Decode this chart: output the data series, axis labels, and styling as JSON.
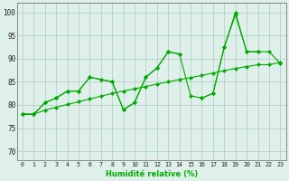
{
  "x": [
    0,
    1,
    2,
    3,
    4,
    5,
    6,
    7,
    8,
    9,
    10,
    11,
    12,
    13,
    14,
    15,
    16,
    17,
    18,
    19,
    20,
    21,
    22,
    23
  ],
  "line_main": [
    78,
    78,
    80.5,
    81.5,
    83,
    83,
    86,
    85.5,
    85,
    79,
    80.5,
    86,
    88,
    91.5,
    91,
    82,
    81.5,
    82.5,
    92.5,
    99.5,
    91.5,
    91.5,
    91.5,
    89
  ],
  "line_alt": [
    78,
    78,
    80.5,
    81.5,
    83,
    83,
    86,
    85.5,
    85,
    79,
    80.5,
    86,
    88,
    91.5,
    91,
    null,
    81.5,
    82.5,
    92.5,
    100,
    91.5,
    91.5,
    null,
    null
  ],
  "line_trend": [
    78,
    78,
    78.9,
    79.5,
    80.1,
    80.7,
    81.3,
    81.9,
    82.5,
    83.0,
    83.5,
    84.0,
    84.5,
    85.0,
    85.5,
    85.9,
    86.4,
    86.9,
    87.4,
    87.9,
    88.3,
    88.7,
    88.7,
    89.2
  ],
  "bg_color": "#dff0ea",
  "line_color": "#00aa00",
  "grid_color": "#aaccc4",
  "ylabel_values": [
    70,
    75,
    80,
    85,
    90,
    95,
    100
  ],
  "xlabel": "Humidité relative (%)",
  "xlim": [
    -0.5,
    23.5
  ],
  "ylim": [
    68,
    102
  ]
}
